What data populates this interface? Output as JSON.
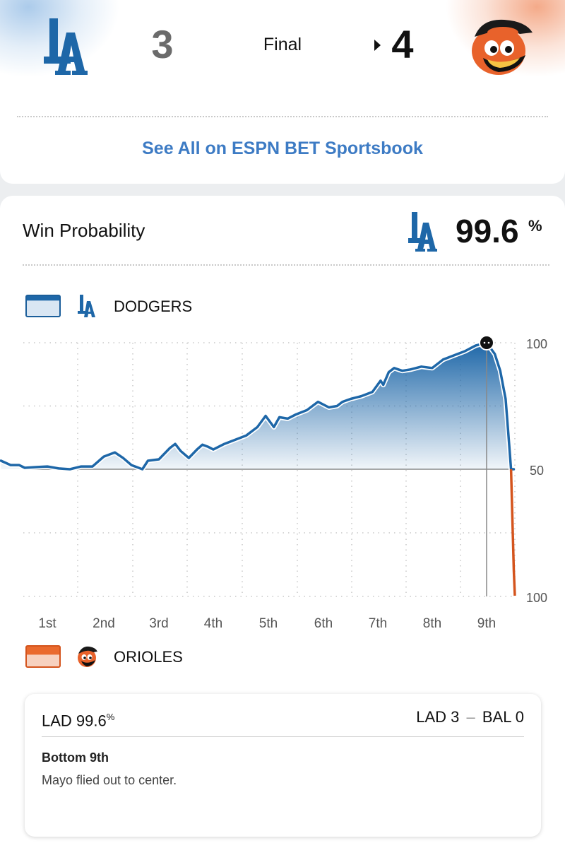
{
  "game": {
    "away": {
      "abbr": "LAD",
      "name": "DODGERS",
      "score": "3",
      "logo_icon": "dodgers-la-logo-icon",
      "color": "#1e67a8"
    },
    "home": {
      "abbr": "BAL",
      "name": "ORIOLES",
      "score": "4",
      "logo_icon": "orioles-bird-logo-icon",
      "color": "#e8622b"
    },
    "status": "Final",
    "winner_indicator_icon": "caret-right-icon"
  },
  "betting": {
    "link_label": "See All on ESPN BET Sportsbook"
  },
  "win_probability": {
    "title": "Win Probability",
    "team_logo_icon": "dodgers-la-logo-icon",
    "value": "99.6",
    "unit": "%",
    "legend": [
      {
        "label": "DODGERS",
        "color": "#1e67a8",
        "logo_icon": "dodgers-la-logo-icon"
      },
      {
        "label": "ORIOLES",
        "color": "#e8622b",
        "logo_icon": "orioles-bird-logo-icon"
      }
    ]
  },
  "chart_data": {
    "type": "area",
    "x_tick_labels": [
      "1st",
      "2nd",
      "3rd",
      "4th",
      "5th",
      "6th",
      "7th",
      "8th",
      "9th"
    ],
    "y_tick_labels": [
      "100",
      "50",
      "100"
    ],
    "ylim": [
      -100,
      100
    ],
    "grid": true,
    "series": [
      {
        "name": "DODGERS",
        "x": [
          0.18,
          0.35,
          0.5,
          0.6,
          0.8,
          1.0,
          1.2,
          1.4,
          1.6,
          1.8,
          2.0,
          2.2,
          2.35,
          2.5,
          2.7,
          2.8,
          3.0,
          3.2,
          3.3,
          3.4,
          3.55,
          3.7,
          3.8,
          3.9,
          4.0,
          4.2,
          4.4,
          4.6,
          4.8,
          4.95,
          5.1,
          5.2,
          5.35,
          5.5,
          5.7,
          5.9,
          6.1,
          6.25,
          6.35,
          6.5,
          6.7,
          6.9,
          7.05,
          7.1,
          7.2,
          7.3,
          7.45,
          7.6,
          7.8,
          8.0,
          8.2,
          8.4,
          8.6,
          8.7,
          8.8,
          8.9,
          9.0,
          9.15,
          9.25,
          9.35,
          9.4,
          9.45,
          9.5
        ],
        "values": [
          6.7,
          3.3,
          3.3,
          1.1,
          1.7,
          2.2,
          0.6,
          0.0,
          2.2,
          2.2,
          10.0,
          13.3,
          8.9,
          3.3,
          0.0,
          6.7,
          7.8,
          16.7,
          20.0,
          14.4,
          8.9,
          15.6,
          19.4,
          17.8,
          15.6,
          20.0,
          23.3,
          26.7,
          33.3,
          42.2,
          33.3,
          41.1,
          40.0,
          43.3,
          46.7,
          53.3,
          48.9,
          50.0,
          53.3,
          55.6,
          57.8,
          61.1,
          70.0,
          66.7,
          76.7,
          80.0,
          77.8,
          78.9,
          81.1,
          80.0,
          86.7,
          90.0,
          93.3,
          95.6,
          97.8,
          98.9,
          100.0,
          91.1,
          77.8,
          55.6,
          27.8,
          0.0,
          0.0
        ],
        "color": "#1e67a8"
      },
      {
        "name": "ORIOLES",
        "x": [
          9.45,
          9.5,
          9.52
        ],
        "values": [
          0.0,
          -80.0,
          -100.0
        ],
        "color": "#d4541d"
      }
    ],
    "current_marker": {
      "x": 9.0,
      "value": 100.0
    }
  },
  "play": {
    "team": "LAD",
    "probability": "99.6",
    "unit": "%",
    "score_away": "LAD 3",
    "score_home": "BAL 0",
    "score_separator": "–",
    "inning": "Bottom 9th",
    "description": "Mayo flied out to center."
  }
}
